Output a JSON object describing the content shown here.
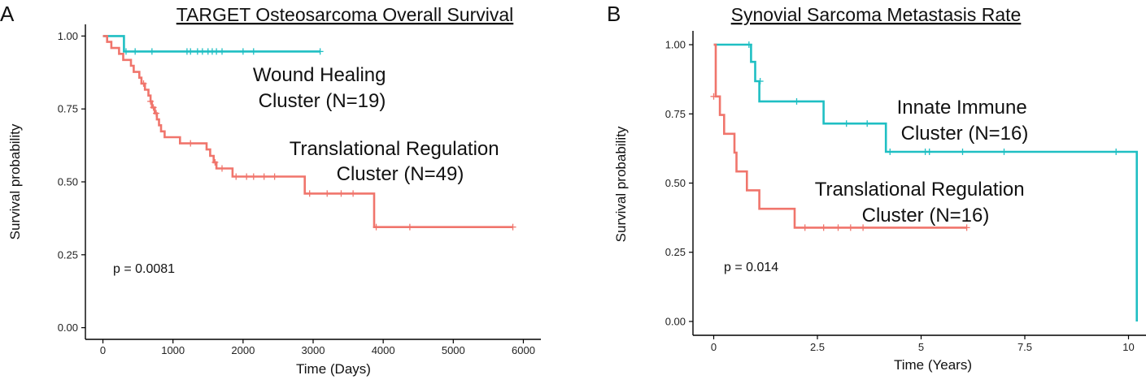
{
  "chart_data": [
    {
      "type": "line",
      "panel_letter": "A",
      "title": "TARGET Osteosarcoma Overall Survival",
      "xlabel": "Time  (Days)",
      "ylabel": "Survival probability",
      "xlim": [
        -250,
        6250
      ],
      "ylim": [
        -0.04,
        1.04
      ],
      "x_ticks": [
        0,
        1000,
        2000,
        3000,
        4000,
        5000,
        6000
      ],
      "x_tick_labels": [
        "0",
        "1000",
        "2000",
        "3000",
        "4000",
        "5000",
        "6000"
      ],
      "y_ticks": [
        0,
        0.25,
        0.5,
        0.75,
        1.0
      ],
      "y_tick_labels": [
        "0.00",
        "0.25",
        "0.50",
        "0.75",
        "1.00"
      ],
      "p_value": "p = 0.0081",
      "grid": false,
      "series": [
        {
          "color": "#1fbfc3",
          "label_lines": [
            "Wound Healing",
            "Cluster (N=19)"
          ],
          "steps": [
            [
              0,
              1.0
            ],
            [
              300,
              1.0
            ],
            [
              300,
              0.947
            ],
            [
              3100,
              0.947
            ]
          ],
          "censors": [
            [
              330,
              0.947
            ],
            [
              460,
              0.947
            ],
            [
              700,
              0.947
            ],
            [
              1200,
              0.947
            ],
            [
              1250,
              0.947
            ],
            [
              1350,
              0.947
            ],
            [
              1420,
              0.947
            ],
            [
              1500,
              0.947
            ],
            [
              1560,
              0.947
            ],
            [
              1620,
              0.947
            ],
            [
              1700,
              0.947
            ],
            [
              2000,
              0.947
            ],
            [
              2150,
              0.947
            ],
            [
              3100,
              0.947
            ]
          ]
        },
        {
          "color": "#f0756c",
          "label_lines": [
            "Translational Regulation",
            "Cluster (N=49)"
          ],
          "steps": [
            [
              0,
              1.0
            ],
            [
              60,
              1.0
            ],
            [
              60,
              0.98
            ],
            [
              120,
              0.98
            ],
            [
              120,
              0.959
            ],
            [
              230,
              0.959
            ],
            [
              230,
              0.939
            ],
            [
              290,
              0.939
            ],
            [
              290,
              0.918
            ],
            [
              400,
              0.918
            ],
            [
              400,
              0.898
            ],
            [
              440,
              0.898
            ],
            [
              440,
              0.877
            ],
            [
              520,
              0.877
            ],
            [
              520,
              0.857
            ],
            [
              550,
              0.857
            ],
            [
              550,
              0.837
            ],
            [
              600,
              0.837
            ],
            [
              600,
              0.816
            ],
            [
              650,
              0.816
            ],
            [
              650,
              0.796
            ],
            [
              680,
              0.796
            ],
            [
              680,
              0.776
            ],
            [
              700,
              0.776
            ],
            [
              700,
              0.755
            ],
            [
              740,
              0.755
            ],
            [
              740,
              0.735
            ],
            [
              770,
              0.735
            ],
            [
              770,
              0.714
            ],
            [
              800,
              0.714
            ],
            [
              800,
              0.694
            ],
            [
              830,
              0.694
            ],
            [
              830,
              0.673
            ],
            [
              880,
              0.673
            ],
            [
              880,
              0.653
            ],
            [
              1100,
              0.653
            ],
            [
              1100,
              0.632
            ],
            [
              1480,
              0.632
            ],
            [
              1480,
              0.611
            ],
            [
              1530,
              0.611
            ],
            [
              1530,
              0.589
            ],
            [
              1580,
              0.589
            ],
            [
              1580,
              0.567
            ],
            [
              1620,
              0.567
            ],
            [
              1620,
              0.546
            ],
            [
              1850,
              0.546
            ],
            [
              1850,
              0.518
            ],
            [
              2880,
              0.518
            ],
            [
              2880,
              0.46
            ],
            [
              3870,
              0.46
            ],
            [
              3870,
              0.345
            ],
            [
              5850,
              0.345
            ]
          ],
          "censors": [
            [
              580,
              0.837
            ],
            [
              680,
              0.776
            ],
            [
              720,
              0.755
            ],
            [
              760,
              0.735
            ],
            [
              1250,
              0.632
            ],
            [
              1600,
              0.567
            ],
            [
              1700,
              0.546
            ],
            [
              1900,
              0.518
            ],
            [
              2050,
              0.518
            ],
            [
              2150,
              0.518
            ],
            [
              2300,
              0.518
            ],
            [
              2450,
              0.518
            ],
            [
              2950,
              0.46
            ],
            [
              3200,
              0.46
            ],
            [
              3400,
              0.46
            ],
            [
              3570,
              0.46
            ],
            [
              3900,
              0.345
            ],
            [
              4380,
              0.345
            ],
            [
              5850,
              0.345
            ]
          ]
        }
      ]
    },
    {
      "type": "line",
      "panel_letter": "B",
      "title": "Synovial Sarcoma Metastasis Rate",
      "xlabel": "Time  (Years)",
      "ylabel": "Survival probability",
      "xlim": [
        -0.5,
        10.5
      ],
      "ylim": [
        -0.05,
        1.05
      ],
      "x_ticks": [
        0,
        2.5,
        5,
        7.5,
        10
      ],
      "x_tick_labels": [
        "0",
        "2.5",
        "5",
        "7.5",
        "10"
      ],
      "y_ticks": [
        0,
        0.25,
        0.5,
        0.75,
        1.0
      ],
      "y_tick_labels": [
        "0.00",
        "0.25",
        "0.50",
        "0.75",
        "1.00"
      ],
      "p_value": "p = 0.014",
      "grid": false,
      "series": [
        {
          "color": "#1fbfc3",
          "label_lines": [
            "Innate Immune",
            "Cluster (N=16)"
          ],
          "steps": [
            [
              0,
              1.0
            ],
            [
              0.9,
              1.0
            ],
            [
              0.9,
              0.938
            ],
            [
              1.0,
              0.938
            ],
            [
              1.0,
              0.868
            ],
            [
              1.1,
              0.868
            ],
            [
              1.1,
              0.795
            ],
            [
              2.65,
              0.795
            ],
            [
              2.65,
              0.715
            ],
            [
              4.15,
              0.715
            ],
            [
              4.15,
              0.613
            ],
            [
              10.2,
              0.613
            ],
            [
              10.2,
              0.0
            ]
          ],
          "censors": [
            [
              0.85,
              1.0
            ],
            [
              1.12,
              0.868
            ],
            [
              2.0,
              0.795
            ],
            [
              3.2,
              0.715
            ],
            [
              3.7,
              0.715
            ],
            [
              4.25,
              0.613
            ],
            [
              5.1,
              0.613
            ],
            [
              5.2,
              0.613
            ],
            [
              6.0,
              0.613
            ],
            [
              7.0,
              0.613
            ],
            [
              9.7,
              0.613
            ]
          ]
        },
        {
          "color": "#f0756c",
          "label_lines": [
            "Translational Regulation",
            "Cluster (N=16)"
          ],
          "steps": [
            [
              0,
              1.0
            ],
            [
              0.05,
              1.0
            ],
            [
              0.05,
              0.813
            ],
            [
              0.15,
              0.813
            ],
            [
              0.15,
              0.746
            ],
            [
              0.25,
              0.746
            ],
            [
              0.25,
              0.678
            ],
            [
              0.5,
              0.678
            ],
            [
              0.5,
              0.61
            ],
            [
              0.55,
              0.61
            ],
            [
              0.55,
              0.542
            ],
            [
              0.8,
              0.542
            ],
            [
              0.8,
              0.474
            ],
            [
              1.1,
              0.474
            ],
            [
              1.1,
              0.407
            ],
            [
              1.95,
              0.407
            ],
            [
              1.95,
              0.339
            ],
            [
              6.1,
              0.339
            ]
          ],
          "censors": [
            [
              0.0,
              0.813
            ],
            [
              2.2,
              0.339
            ],
            [
              2.65,
              0.339
            ],
            [
              3.0,
              0.339
            ],
            [
              3.3,
              0.339
            ],
            [
              3.6,
              0.339
            ],
            [
              6.1,
              0.339
            ]
          ]
        }
      ]
    }
  ]
}
